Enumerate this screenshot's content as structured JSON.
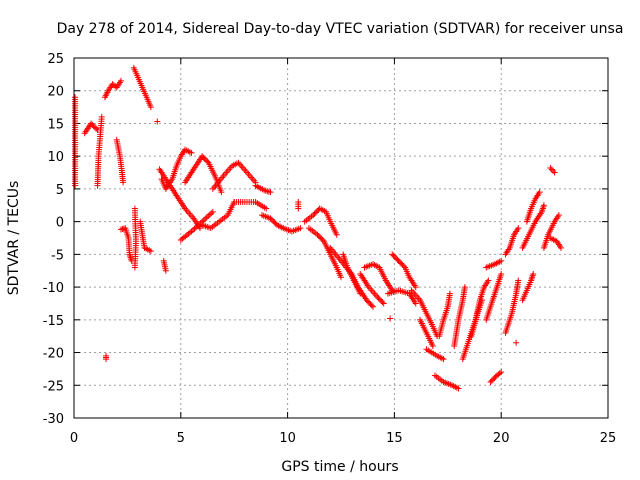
{
  "chart_data": {
    "type": "scatter",
    "title": "Day 278 of 2014, Sidereal Day-to-day VTEC variation (SDTVAR) for receiver unsa",
    "xlabel": "GPS time / hours",
    "ylabel": "SDTVAR / TECUs",
    "xlim": [
      0,
      25
    ],
    "ylim": [
      -30,
      25
    ],
    "xticks": [
      0,
      5,
      10,
      15,
      20,
      25
    ],
    "yticks": [
      -30,
      -25,
      -20,
      -15,
      -10,
      -5,
      0,
      5,
      10,
      15,
      20,
      25
    ],
    "grid": true,
    "marker": "plus",
    "color": "#ff0000",
    "series": [
      {
        "name": "SDTVAR",
        "segments": [
          [
            [
              0.05,
              19
            ],
            [
              0.05,
              6.5
            ],
            [
              0.05,
              5.5
            ]
          ],
          [
            [
              0.5,
              13.5
            ],
            [
              0.8,
              15
            ],
            [
              1.1,
              14
            ]
          ],
          [
            [
              1.1,
              5.5
            ],
            [
              1.15,
              10
            ],
            [
              1.25,
              14
            ],
            [
              1.3,
              16
            ]
          ],
          [
            [
              1.45,
              19
            ],
            [
              1.6,
              20
            ],
            [
              1.8,
              21
            ],
            [
              2.0,
              20.5
            ],
            [
              2.2,
              21.5
            ]
          ],
          [
            [
              2.0,
              12.5
            ],
            [
              2.15,
              10
            ],
            [
              2.25,
              7.5
            ],
            [
              2.3,
              6
            ]
          ],
          [
            [
              2.8,
              23.5
            ],
            [
              3.0,
              22
            ],
            [
              3.2,
              20.5
            ],
            [
              3.4,
              19
            ],
            [
              3.6,
              17.5
            ]
          ],
          [
            [
              3.9,
              15.3
            ]
          ],
          [
            [
              2.2,
              -1.2
            ],
            [
              2.4,
              -1
            ],
            [
              2.55,
              -2.5
            ],
            [
              2.6,
              -5
            ],
            [
              2.7,
              -6
            ]
          ],
          [
            [
              2.85,
              2
            ],
            [
              2.9,
              -3
            ],
            [
              2.85,
              -7
            ]
          ],
          [
            [
              3.1,
              0
            ],
            [
              3.3,
              -4
            ],
            [
              3.6,
              -4.5
            ]
          ],
          [
            [
              4.2,
              -6
            ],
            [
              4.3,
              -7.5
            ]
          ],
          [
            [
              1.5,
              -20.5
            ],
            [
              1.5,
              -21
            ]
          ],
          [
            [
              4.1,
              6.5
            ],
            [
              4.3,
              5
            ],
            [
              4.6,
              6.5
            ],
            [
              4.8,
              8.5
            ],
            [
              5.0,
              10
            ],
            [
              5.2,
              11
            ],
            [
              5.5,
              10.5
            ]
          ],
          [
            [
              4.0,
              8
            ],
            [
              4.4,
              6
            ],
            [
              4.8,
              4
            ],
            [
              5.2,
              2
            ],
            [
              5.6,
              0.5
            ],
            [
              5.9,
              -1
            ]
          ],
          [
            [
              5.0,
              -2.8
            ],
            [
              5.5,
              -1.5
            ],
            [
              6.0,
              0
            ],
            [
              6.5,
              1.5
            ]
          ],
          [
            [
              5.2,
              6
            ],
            [
              5.6,
              8
            ],
            [
              6.0,
              10
            ],
            [
              6.3,
              9
            ],
            [
              6.6,
              7
            ],
            [
              6.9,
              4.5
            ]
          ],
          [
            [
              6.0,
              -0.5
            ],
            [
              6.4,
              -1
            ],
            [
              6.8,
              0
            ],
            [
              7.2,
              1
            ],
            [
              7.5,
              3
            ]
          ],
          [
            [
              6.5,
              5
            ],
            [
              7.0,
              7
            ],
            [
              7.4,
              8.5
            ],
            [
              7.7,
              9
            ],
            [
              8.1,
              7.5
            ],
            [
              8.5,
              6
            ]
          ],
          [
            [
              7.5,
              3
            ],
            [
              8.0,
              3
            ],
            [
              8.5,
              3
            ],
            [
              9.0,
              2
            ]
          ],
          [
            [
              8.5,
              5.5
            ],
            [
              8.9,
              4.8
            ],
            [
              9.2,
              4.5
            ]
          ],
          [
            [
              8.8,
              1
            ],
            [
              9.2,
              0.5
            ],
            [
              9.5,
              -0.5
            ],
            [
              9.8,
              -1
            ],
            [
              10.2,
              -1.5
            ],
            [
              10.6,
              -1
            ]
          ],
          [
            [
              10.5,
              3
            ],
            [
              10.5,
              2
            ]
          ],
          [
            [
              10.8,
              0
            ],
            [
              11.2,
              1
            ],
            [
              11.5,
              2
            ],
            [
              11.8,
              1.5
            ],
            [
              12.0,
              0
            ],
            [
              12.3,
              -2
            ]
          ],
          [
            [
              11.0,
              -1
            ],
            [
              11.4,
              -2
            ],
            [
              11.7,
              -3
            ],
            [
              12.0,
              -5
            ],
            [
              12.3,
              -7
            ],
            [
              12.5,
              -8.5
            ]
          ],
          [
            [
              12.0,
              -4
            ],
            [
              12.5,
              -6
            ],
            [
              13.0,
              -8
            ],
            [
              13.3,
              -10
            ],
            [
              13.7,
              -12
            ],
            [
              14.0,
              -13
            ]
          ],
          [
            [
              12.6,
              -5
            ],
            [
              12.8,
              -7
            ],
            [
              13.1,
              -9
            ],
            [
              13.4,
              -11
            ]
          ],
          [
            [
              13.4,
              -8
            ],
            [
              13.8,
              -10
            ],
            [
              14.2,
              -11.5
            ],
            [
              14.5,
              -12.5
            ]
          ],
          [
            [
              13.6,
              -7
            ],
            [
              14.0,
              -6.5
            ],
            [
              14.3,
              -7
            ],
            [
              14.6,
              -9
            ],
            [
              14.9,
              -10.5
            ]
          ],
          [
            [
              14.9,
              -5
            ],
            [
              15.2,
              -6
            ],
            [
              15.5,
              -7
            ],
            [
              15.7,
              -8.5
            ],
            [
              16.0,
              -10
            ]
          ],
          [
            [
              14.7,
              -11
            ],
            [
              15.2,
              -10.5
            ],
            [
              15.7,
              -11
            ],
            [
              16.0,
              -12.5
            ]
          ],
          [
            [
              14.8,
              -14.8
            ]
          ],
          [
            [
              15.8,
              -10.5
            ],
            [
              16.2,
              -12
            ],
            [
              16.5,
              -14
            ],
            [
              16.8,
              -16
            ],
            [
              17.0,
              -17.5
            ]
          ],
          [
            [
              16.2,
              -15
            ],
            [
              16.5,
              -17
            ],
            [
              16.8,
              -19
            ]
          ],
          [
            [
              16.5,
              -19.5
            ],
            [
              17.0,
              -20.5
            ],
            [
              17.3,
              -21
            ]
          ],
          [
            [
              16.9,
              -23.5
            ],
            [
              17.3,
              -24.5
            ],
            [
              17.7,
              -25
            ],
            [
              18.0,
              -25.5
            ]
          ],
          [
            [
              17.1,
              -17.5
            ],
            [
              17.3,
              -15
            ],
            [
              17.5,
              -13
            ],
            [
              17.6,
              -11
            ]
          ],
          [
            [
              17.8,
              -19
            ],
            [
              18.0,
              -15
            ],
            [
              18.2,
              -12
            ],
            [
              18.3,
              -10
            ]
          ],
          [
            [
              18.2,
              -21
            ],
            [
              18.5,
              -18
            ],
            [
              18.8,
              -15
            ],
            [
              19.0,
              -12
            ],
            [
              19.2,
              -10
            ],
            [
              19.4,
              -9
            ]
          ],
          [
            [
              18.6,
              -17.5
            ],
            [
              18.9,
              -14
            ],
            [
              19.1,
              -12
            ]
          ],
          [
            [
              19.3,
              -15
            ],
            [
              19.6,
              -12
            ],
            [
              19.8,
              -10
            ],
            [
              20.0,
              -8
            ]
          ],
          [
            [
              19.3,
              -7
            ],
            [
              19.7,
              -6.5
            ],
            [
              20.0,
              -6
            ]
          ],
          [
            [
              19.5,
              -24.5
            ],
            [
              19.8,
              -23.5
            ],
            [
              20.0,
              -23
            ]
          ],
          [
            [
              20.2,
              -17
            ],
            [
              20.5,
              -14
            ],
            [
              20.7,
              -11
            ],
            [
              20.8,
              -9
            ]
          ],
          [
            [
              20.2,
              -5
            ],
            [
              20.4,
              -4
            ],
            [
              20.6,
              -2
            ],
            [
              20.8,
              -1
            ]
          ],
          [
            [
              20.7,
              -18.5
            ]
          ],
          [
            [
              21.0,
              -12
            ],
            [
              21.2,
              -10.5
            ],
            [
              21.4,
              -9
            ],
            [
              21.5,
              -8
            ]
          ],
          [
            [
              21.0,
              -4
            ],
            [
              21.3,
              -2
            ],
            [
              21.6,
              0
            ],
            [
              21.9,
              1.5
            ],
            [
              22.0,
              2.5
            ]
          ],
          [
            [
              21.2,
              0
            ],
            [
              21.4,
              2
            ],
            [
              21.6,
              3.5
            ],
            [
              21.8,
              4.5
            ]
          ],
          [
            [
              22.0,
              -4
            ],
            [
              22.2,
              -2
            ],
            [
              22.5,
              0
            ],
            [
              22.7,
              1
            ]
          ],
          [
            [
              22.3,
              -2.5
            ],
            [
              22.6,
              -3
            ],
            [
              22.8,
              -4
            ]
          ],
          [
            [
              22.3,
              8.2
            ],
            [
              22.5,
              7.5
            ]
          ]
        ]
      }
    ]
  }
}
